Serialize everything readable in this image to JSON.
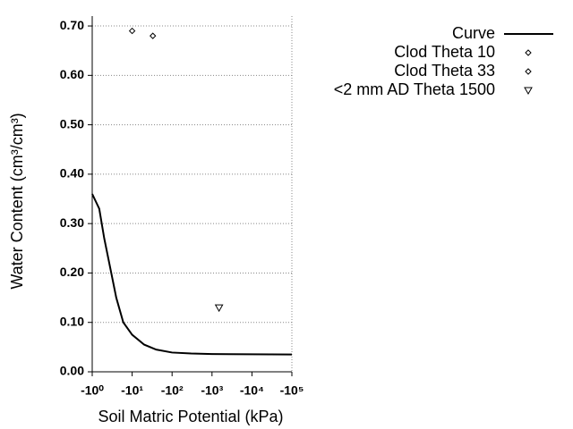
{
  "chart_data": {
    "type": "scatter",
    "x_label": "Soil Matric Potential (kPa)",
    "y_label": "Water Content (cm³/cm³)",
    "xscale": "log",
    "xlim": [
      -1,
      -100000
    ],
    "ylim": [
      0,
      0.72
    ],
    "xticks": [
      {
        "value": -1,
        "label": "-10⁰"
      },
      {
        "value": -10,
        "label": "-10¹"
      },
      {
        "value": -100,
        "label": "-10²"
      },
      {
        "value": -1000,
        "label": "-10³"
      },
      {
        "value": -10000,
        "label": "-10⁴"
      },
      {
        "value": -100000,
        "label": "-10⁵"
      }
    ],
    "yticks": [
      {
        "value": 0,
        "label": "0.00"
      },
      {
        "value": 0.1,
        "label": "0.10"
      },
      {
        "value": 0.2,
        "label": "0.20"
      },
      {
        "value": 0.3,
        "label": "0.30"
      },
      {
        "value": 0.4,
        "label": "0.40"
      },
      {
        "value": 0.5,
        "label": "0.50"
      },
      {
        "value": 0.6,
        "label": "0.60"
      },
      {
        "value": 0.7,
        "label": "0.70"
      }
    ],
    "grid": true,
    "legend": "top-right",
    "series": [
      {
        "name": "Curve",
        "color": "#000000",
        "style": "line",
        "x": [
          -1,
          -1.5,
          -2,
          -3,
          -4,
          -6,
          -10,
          -20,
          -40,
          -100,
          -300,
          -1000,
          -100000
        ],
        "values": [
          0.36,
          0.33,
          0.27,
          0.2,
          0.15,
          0.1,
          0.075,
          0.055,
          0.045,
          0.039,
          0.037,
          0.036,
          0.035
        ]
      },
      {
        "name": "Clod Theta 10",
        "color": "#000000",
        "style": "diamond",
        "x": [
          -10
        ],
        "values": [
          0.69
        ]
      },
      {
        "name": "Clod Theta 33",
        "color": "#000000",
        "style": "diamond",
        "x": [
          -33
        ],
        "values": [
          0.68
        ]
      },
      {
        "name": "<2 mm AD Theta 1500",
        "color": "#000000",
        "style": "triangle-down",
        "x": [
          -1500
        ],
        "values": [
          0.13
        ]
      }
    ]
  }
}
